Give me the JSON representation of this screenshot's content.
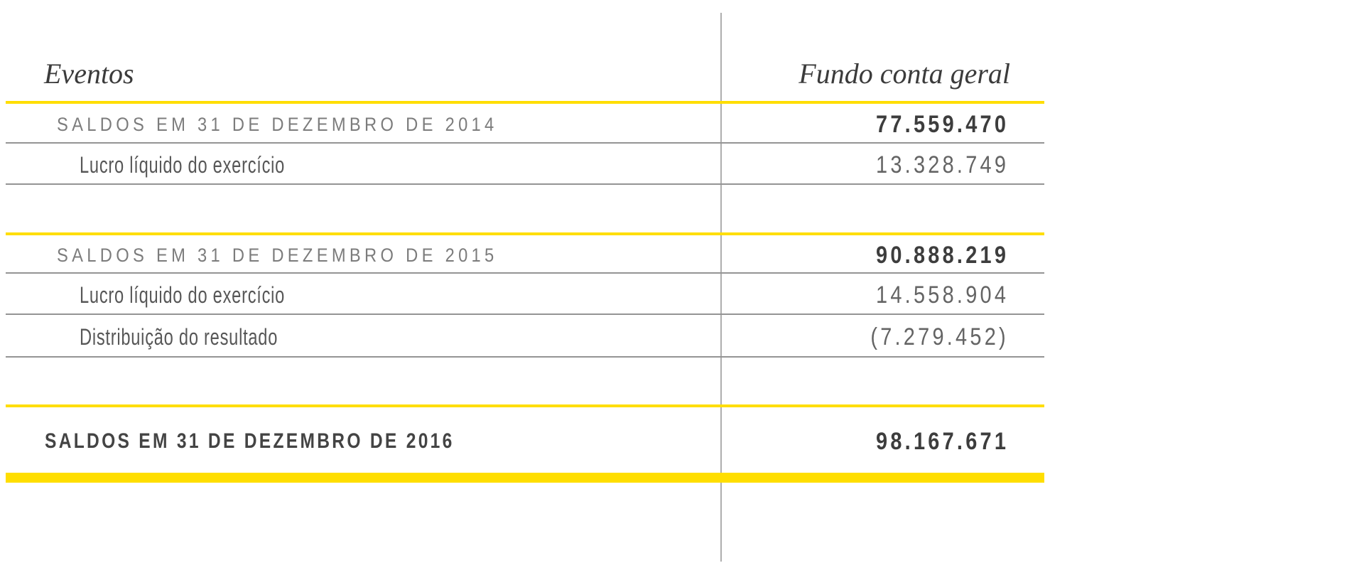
{
  "page": {
    "background": "#ffffff"
  },
  "colors": {
    "accent_yellow": "#ffde00",
    "row_rule_gray": "#949494",
    "column_divider_gray": "#aeaeae",
    "header_text": "#3b3b3b",
    "saldo_label_text": "#7c7c7c",
    "detail_label_text": "#575757",
    "final_label_text": "#444444",
    "value_text": "#646464",
    "value_bold_text": "#3d3d3d"
  },
  "table": {
    "columns": {
      "events": "Eventos",
      "fund": "Fundo conta geral"
    },
    "rows": [
      {
        "label": "SALDOS EM 31 DE DEZEMBRO DE 2014",
        "value": "77.559.470"
      },
      {
        "label": "Lucro líquido do exercício",
        "value": "13.328.749"
      },
      {
        "label": "SALDOS EM 31 DE DEZEMBRO DE 2015",
        "value": "90.888.219"
      },
      {
        "label": "Lucro líquido do exercício",
        "value": "14.558.904"
      },
      {
        "label": "Distribuição do resultado",
        "value": "(7.279.452)"
      },
      {
        "label": "SALDOS EM 31 DE DEZEMBRO DE 2016",
        "value": "98.167.671"
      }
    ]
  }
}
